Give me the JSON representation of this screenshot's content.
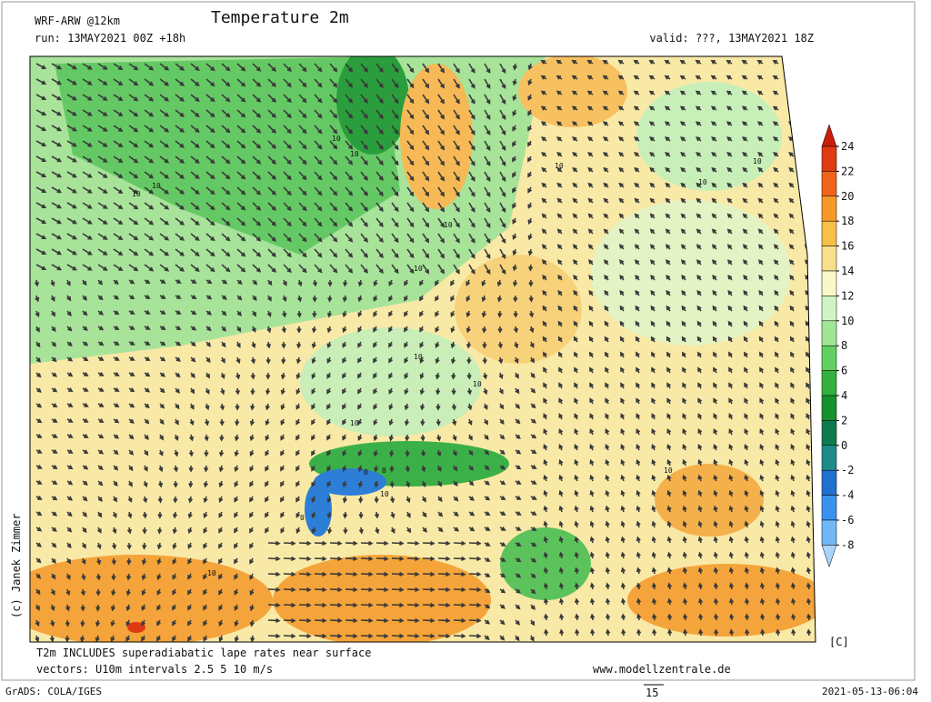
{
  "header": {
    "model": "WRF-ARW @12km",
    "title": "Temperature 2m",
    "run": "run: 13MAY2021 00Z +18h",
    "valid": "valid: ???, 13MAY2021 18Z"
  },
  "colorbar": {
    "levels": [
      24,
      22,
      20,
      18,
      16,
      14,
      12,
      10,
      8,
      6,
      4,
      2,
      0,
      -2,
      -4,
      -6,
      -8
    ],
    "colors": [
      "#c81e0a",
      "#e03a12",
      "#f0641a",
      "#f59a28",
      "#f8c048",
      "#f8e08a",
      "#f9f8c8",
      "#d2f4c4",
      "#a0e694",
      "#62cf60",
      "#36b040",
      "#17902e",
      "#0f7a4e",
      "#1f8a8a",
      "#2070d0",
      "#3a92ee",
      "#72b8f6",
      "#a8d4fa"
    ],
    "unit": "[C]"
  },
  "map": {
    "contour_labels": [
      "10",
      "10",
      "10",
      "10",
      "10",
      "10",
      "10",
      "10",
      "10",
      "10",
      "10",
      "10",
      "10",
      "10",
      "10",
      "0",
      "0",
      "0"
    ]
  },
  "footer": {
    "note": "T2m INCLUDES superadiabatic lape rates near surface",
    "vectors": "vectors: U10m intervals 2.5 5 10 m/s",
    "website": "www.modellzentrale.de",
    "credit": "(c) Janek Zimmer",
    "software": "GrADS: COLA/IGES",
    "reference_vector": "15",
    "timestamp": "2021-05-13-06:04"
  }
}
